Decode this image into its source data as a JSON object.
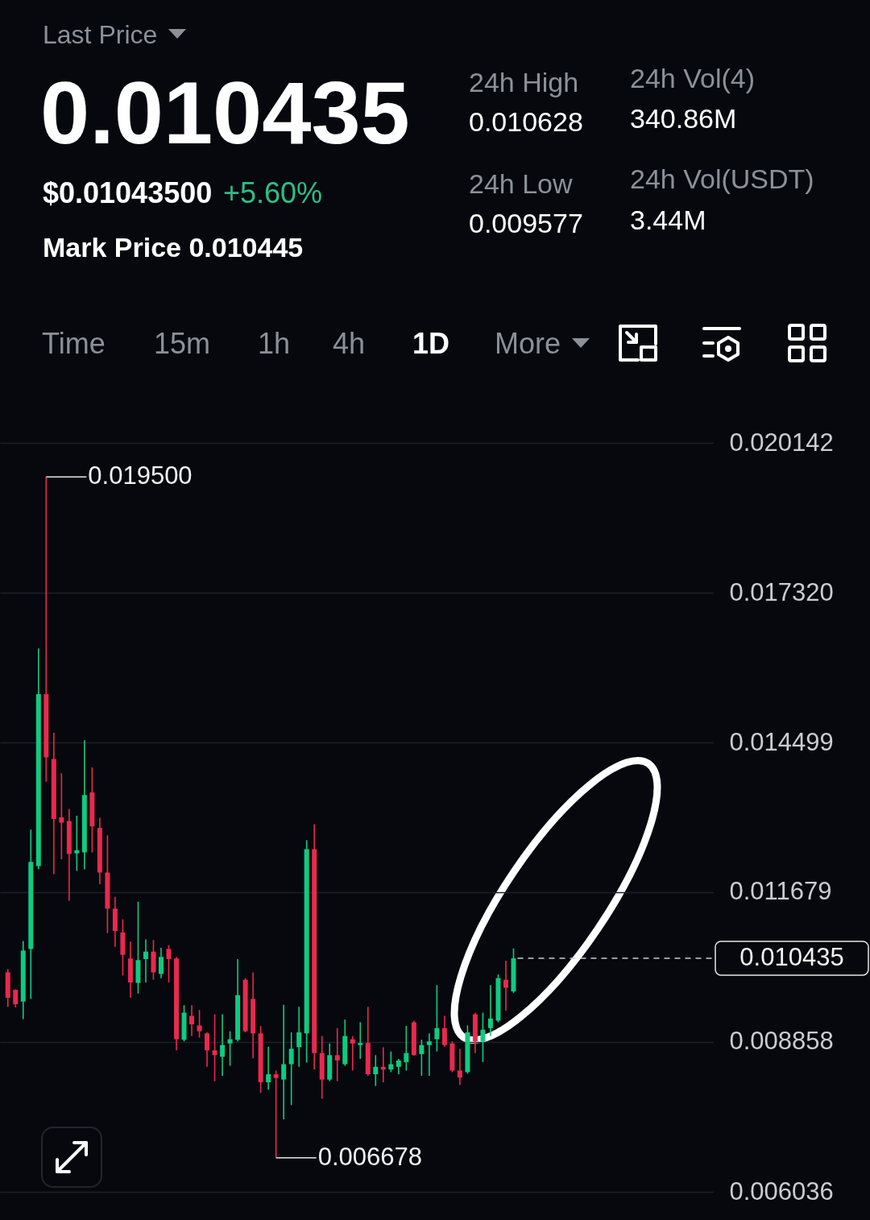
{
  "chart_data": [
    {
      "type": "other",
      "title": "Last Price",
      "annotations": [
        "0.010435",
        "$0.01043500",
        "+5.60%",
        "Mark Price 0.010445",
        "24h High",
        "0.010628",
        "24h Vol(4)",
        "340.86M",
        "24h Low",
        "0.009577",
        "24h Vol(USDT)",
        "3.44M",
        "Time",
        "15m",
        "1h",
        "4h",
        "1D",
        "More"
      ]
    },
    {
      "type": "candlestick",
      "categories": [
        null,
        null,
        null,
        null,
        null,
        null,
        null,
        null,
        null,
        null,
        null,
        null,
        null,
        null,
        null,
        null,
        null,
        null,
        null,
        null,
        null,
        null,
        null,
        null,
        null,
        null,
        null,
        null,
        null,
        null,
        null,
        null,
        null,
        null,
        null,
        null,
        null,
        null,
        null,
        null,
        null,
        null,
        null,
        null,
        null,
        null,
        null,
        null,
        null,
        null,
        null,
        null,
        null,
        null,
        null,
        null,
        null,
        null,
        null,
        null,
        null,
        null,
        null,
        null,
        null,
        null,
        null,
        null,
        null,
        null,
        null,
        null,
        null,
        null,
        null,
        null,
        null,
        null,
        null,
        null,
        null,
        null,
        null,
        null,
        null,
        null,
        null,
        null,
        null,
        null,
        null,
        null
      ],
      "ohlc": [
        [
          0.01017,
          0.01023,
          0.00952,
          0.00969
        ],
        [
          0.00984,
          0.00985,
          0.00951,
          0.00957
        ],
        [
          0.00962,
          0.01076,
          0.00929,
          0.01058
        ],
        [
          0.01061,
          0.01286,
          0.00967,
          0.01225
        ],
        [
          0.01217,
          0.01627,
          0.01211,
          0.01541
        ],
        [
          0.01541,
          0.0195,
          0.01376,
          0.01422
        ],
        [
          0.01419,
          0.01468,
          0.01202,
          0.01306
        ],
        [
          0.01309,
          0.01392,
          0.0123,
          0.01299
        ],
        [
          0.01302,
          0.01325,
          0.01152,
          0.0124
        ],
        [
          0.01241,
          0.01312,
          0.01208,
          0.01247
        ],
        [
          0.01243,
          0.01454,
          0.01211,
          0.01351
        ],
        [
          0.01356,
          0.01403,
          0.01243,
          0.01292
        ],
        [
          0.01289,
          0.01308,
          0.01183,
          0.01205
        ],
        [
          0.01205,
          0.01275,
          0.01091,
          0.01137
        ],
        [
          0.01137,
          0.01159,
          0.01065,
          0.01095
        ],
        [
          0.01092,
          0.01117,
          0.01011,
          0.0105
        ],
        [
          0.01043,
          0.01075,
          0.00969,
          0.00998
        ],
        [
          0.00997,
          0.0115,
          0.00977,
          0.0104
        ],
        [
          0.01042,
          0.01079,
          0.00998,
          0.01056
        ],
        [
          0.01056,
          0.01078,
          0.01003,
          0.01017
        ],
        [
          0.01014,
          0.01063,
          0.01006,
          0.01046
        ],
        [
          0.01061,
          0.01068,
          0.00998,
          0.01042
        ],
        [
          0.01043,
          0.01046,
          0.0087,
          0.00891
        ],
        [
          0.0089,
          0.00955,
          0.00887,
          0.00941
        ],
        [
          0.00935,
          0.00955,
          0.00897,
          0.00919
        ],
        [
          0.00917,
          0.00946,
          0.00894,
          0.00906
        ],
        [
          0.00902,
          0.00904,
          0.00839,
          0.0087
        ],
        [
          0.0087,
          0.00938,
          0.00812,
          0.00861
        ],
        [
          0.00858,
          0.00938,
          0.00822,
          0.0088
        ],
        [
          0.00883,
          0.00906,
          0.00841,
          0.00891
        ],
        [
          0.0089,
          0.01042,
          0.00887,
          0.00974
        ],
        [
          0.01003,
          0.01006,
          0.00904,
          0.00906
        ],
        [
          0.00967,
          0.01017,
          0.00855,
          0.00902
        ],
        [
          0.00902,
          0.00916,
          0.0079,
          0.0081
        ],
        [
          0.0081,
          0.00877,
          0.00796,
          0.00825
        ],
        [
          0.00825,
          0.00832,
          0.006678,
          0.00818
        ],
        [
          0.00815,
          0.00956,
          0.0074,
          0.00844
        ],
        [
          0.00844,
          0.00904,
          0.00767,
          0.00873
        ],
        [
          0.00876,
          0.00952,
          0.00839,
          0.00904
        ],
        [
          0.00902,
          0.01266,
          0.00847,
          0.01249
        ],
        [
          0.01249,
          0.01296,
          0.00834,
          0.00865
        ],
        [
          0.00865,
          0.00897,
          0.00779,
          0.00815
        ],
        [
          0.00815,
          0.00883,
          0.00812,
          0.00861
        ],
        [
          0.00861,
          0.00912,
          0.00812,
          0.00851
        ],
        [
          0.00844,
          0.00928,
          0.00841,
          0.00897
        ],
        [
          0.00891,
          0.00897,
          0.00832,
          0.00883
        ],
        [
          0.0088,
          0.00923,
          0.00854,
          0.00884
        ],
        [
          0.00884,
          0.00952,
          0.00822,
          0.00825
        ],
        [
          0.00825,
          0.00861,
          0.00803,
          0.00839
        ],
        [
          0.00839,
          0.00876,
          0.0081,
          0.00834
        ],
        [
          0.00834,
          0.00868,
          0.00829,
          0.00844
        ],
        [
          0.00839,
          0.00854,
          0.00825,
          0.00851
        ],
        [
          0.00848,
          0.00916,
          0.00832,
          0.00865
        ],
        [
          0.00923,
          0.00926,
          0.0086,
          0.00861
        ],
        [
          0.00863,
          0.0089,
          0.00822,
          0.0088
        ],
        [
          0.0088,
          0.00902,
          0.00822,
          0.00887
        ],
        [
          0.00891,
          0.00993,
          0.00868,
          0.00912
        ],
        [
          0.00912,
          0.00935,
          0.00877,
          0.0088
        ],
        [
          0.00883,
          0.00887,
          0.00829,
          0.00832
        ],
        [
          0.00832,
          0.00873,
          0.00805,
          0.00819
        ],
        [
          0.00829,
          0.00917,
          0.00826,
          0.00904
        ],
        [
          0.00938,
          0.00941,
          0.00865,
          0.00887
        ],
        [
          0.00887,
          0.00941,
          0.00848,
          0.00909
        ],
        [
          0.00912,
          0.00993,
          0.00897,
          0.0093
        ],
        [
          0.00926,
          0.01013,
          0.00923,
          0.01006
        ],
        [
          0.01003,
          0.01039,
          0.00945,
          0.00988
        ],
        [
          0.00981,
          0.01062,
          0.00978,
          0.010435
        ],
        null,
        null,
        null,
        null,
        null,
        null,
        null,
        null,
        null,
        null,
        null,
        null,
        null,
        null,
        null,
        null,
        null,
        null,
        null,
        null,
        null,
        null,
        null,
        null,
        null
      ],
      "colors": [
        "#e9294f",
        "#e9294f",
        "#0ecb81",
        "#0ecb81",
        "#0ecb81",
        "#e9294f",
        "#e9294f",
        "#e9294f",
        "#e9294f",
        "#0ecb81",
        "#0ecb81",
        "#e9294f",
        "#e9294f",
        "#e9294f",
        "#e9294f",
        "#e9294f",
        "#e9294f",
        "#0ecb81",
        "#0ecb81",
        "#e9294f",
        "#0ecb81",
        "#e9294f",
        "#e9294f",
        "#0ecb81",
        "#e9294f",
        "#e9294f",
        "#e9294f",
        "#e9294f",
        "#0ecb81",
        "#0ecb81",
        "#0ecb81",
        "#e9294f",
        "#e9294f",
        "#e9294f",
        "#0ecb81",
        "#e9294f",
        "#0ecb81",
        "#0ecb81",
        "#0ecb81",
        "#0ecb81",
        "#e9294f",
        "#e9294f",
        "#0ecb81",
        "#e9294f",
        "#0ecb81",
        "#e9294f",
        "#0ecb81",
        "#e9294f",
        "#0ecb81",
        "#e9294f",
        "#0ecb81",
        "#0ecb81",
        "#0ecb81",
        "#e9294f",
        "#0ecb81",
        "#0ecb81",
        "#0ecb81",
        "#e9294f",
        "#e9294f",
        "#e9294f",
        "#0ecb81",
        "#e9294f",
        "#0ecb81",
        "#0ecb81",
        "#0ecb81",
        "#e9294f",
        "#0ecb81",
        null,
        null,
        null,
        null,
        null,
        null,
        null,
        null,
        null,
        null,
        null,
        null,
        null,
        null,
        null,
        null,
        null,
        null,
        null,
        null,
        null,
        null,
        null,
        null,
        null
      ],
      "ylim": [
        0.006036,
        0.020142
      ],
      "yticks": [
        0.006036,
        0.008858,
        0.011679,
        0.014499,
        {
          "value": 0.01732,
          "label": "0.017320"
        },
        0.020142
      ],
      "grid": "y",
      "ref_lines": [
        {
          "axis": "y",
          "value": 0.010435,
          "label": "0.010435",
          "line_style": "dashed"
        }
      ],
      "annotations": [
        "0.019500",
        "0.006678"
      ]
    }
  ]
}
